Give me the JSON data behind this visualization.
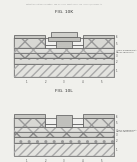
{
  "header_text": "Patent Application Publication   Feb. 24, 2011  Sheet 131 of 146   US 2011/0037041 A1",
  "fig1_label": "FIG. 10K",
  "fig2_label": "FIG. 10L",
  "bg_color": "#f0f0ec",
  "white": "#ffffff",
  "light_gray": "#e8e8e4",
  "mid_gray": "#d0d0cc",
  "dark_gray": "#aaaaaa",
  "line_color": "#555555",
  "hatch_color": "#888888"
}
